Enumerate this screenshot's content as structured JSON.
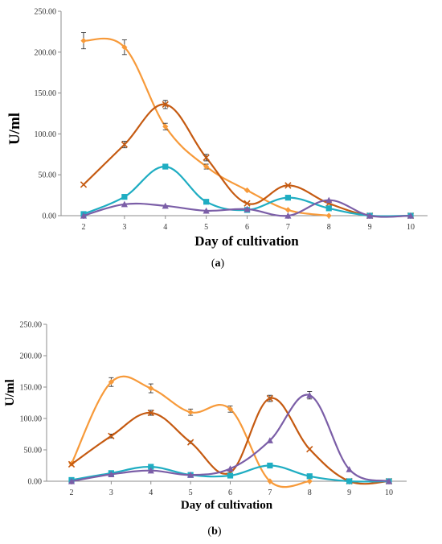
{
  "chart_data": [
    {
      "type": "line",
      "panel_label": "a",
      "ylabel": "U/ml",
      "xlabel": "Day of cultivation",
      "ylim": [
        0,
        250
      ],
      "yticks": [
        "0.00",
        "50.00",
        "100.00",
        "150.00",
        "200.00",
        "250.00"
      ],
      "x": [
        2,
        3,
        4,
        5,
        6,
        7,
        8,
        9,
        10
      ],
      "xticks": [
        "2",
        "3",
        "4",
        "5",
        "6",
        "7",
        "8",
        "9",
        "10"
      ],
      "grid": false,
      "series": [
        {
          "color": "#F79A3A",
          "marker": "diamond",
          "x": [
            2,
            3,
            4,
            5,
            6,
            7,
            8
          ],
          "values": [
            214,
            206,
            109,
            60,
            31,
            7,
            0
          ],
          "errors": [
            10,
            9,
            4,
            3,
            0,
            0,
            0
          ]
        },
        {
          "color": "#C55A11",
          "marker": "x",
          "x": [
            2,
            3,
            4,
            5,
            6,
            7,
            8,
            9,
            10
          ],
          "values": [
            38,
            87,
            136,
            71,
            15,
            37,
            15,
            0,
            0
          ],
          "errors": [
            0,
            4,
            5,
            4,
            0,
            0,
            0,
            0,
            0
          ]
        },
        {
          "color": "#1FADC2",
          "marker": "square",
          "x": [
            2,
            3,
            4,
            5,
            6,
            7,
            8,
            9,
            10
          ],
          "values": [
            2,
            23,
            60,
            17,
            7,
            22,
            9,
            0,
            0
          ],
          "errors": [
            0,
            0,
            0,
            0,
            0,
            0,
            0,
            0,
            0
          ]
        },
        {
          "color": "#7B5EA7",
          "marker": "triangle",
          "x": [
            2,
            3,
            4,
            5,
            6,
            7,
            8,
            9,
            10
          ],
          "values": [
            0,
            14,
            12,
            6,
            8,
            0,
            19,
            0,
            0
          ],
          "errors": [
            0,
            0,
            0,
            0,
            0,
            0,
            0,
            0,
            0
          ]
        }
      ]
    },
    {
      "type": "line",
      "panel_label": "b",
      "ylabel": "U/ml",
      "xlabel": "Day of cultivation",
      "ylim": [
        0,
        250
      ],
      "yticks": [
        "0.00",
        "50.00",
        "100.00",
        "150.00",
        "200.00",
        "250.00"
      ],
      "x": [
        2,
        3,
        4,
        5,
        6,
        7,
        8,
        9,
        10
      ],
      "xticks": [
        "2",
        "3",
        "4",
        "5",
        "6",
        "7",
        "8",
        "9",
        "10"
      ],
      "grid": false,
      "series": [
        {
          "color": "#F79A3A",
          "marker": "diamond",
          "x": [
            2,
            3,
            4,
            5,
            6,
            7,
            8
          ],
          "values": [
            28,
            158,
            148,
            110,
            115,
            0,
            0
          ],
          "errors": [
            0,
            7,
            7,
            5,
            5,
            0,
            0
          ]
        },
        {
          "color": "#C55A11",
          "marker": "x",
          "x": [
            2,
            3,
            4,
            5,
            6,
            7,
            8,
            9,
            10
          ],
          "values": [
            27,
            72,
            109,
            62,
            14,
            132,
            51,
            0,
            0
          ],
          "errors": [
            0,
            3,
            4,
            2,
            0,
            5,
            0,
            0,
            0
          ]
        },
        {
          "color": "#1FADC2",
          "marker": "square",
          "x": [
            2,
            3,
            4,
            5,
            6,
            7,
            8,
            9,
            10
          ],
          "values": [
            2,
            13,
            23,
            10,
            9,
            25,
            8,
            0,
            0
          ],
          "errors": [
            0,
            0,
            0,
            0,
            0,
            0,
            0,
            0,
            0
          ]
        },
        {
          "color": "#7B5EA7",
          "marker": "triangle",
          "x": [
            2,
            3,
            4,
            5,
            6,
            7,
            8,
            9,
            10
          ],
          "values": [
            0,
            11,
            17,
            10,
            20,
            65,
            137,
            19,
            0
          ],
          "errors": [
            0,
            0,
            0,
            0,
            0,
            0,
            6,
            0,
            0
          ]
        }
      ]
    }
  ]
}
